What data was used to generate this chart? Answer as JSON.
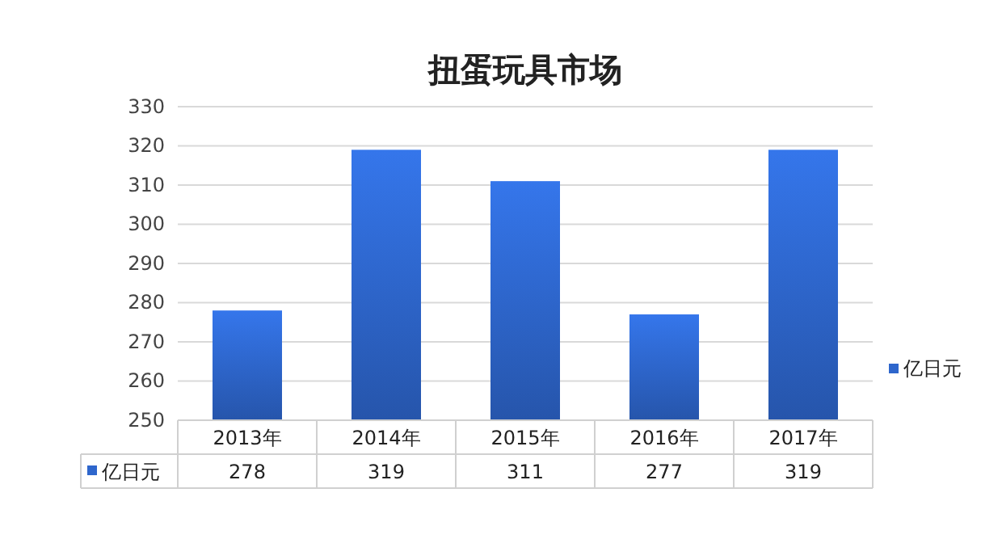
{
  "chart_data": {
    "type": "bar",
    "title": "扭蛋玩具市场",
    "categories": [
      "2013年",
      "2014年",
      "2015年",
      "2016年",
      "2017年"
    ],
    "series": [
      {
        "name": "亿日元",
        "color": "#2e66cc",
        "values": [
          278,
          319,
          311,
          277,
          319
        ]
      }
    ],
    "ylim": [
      250,
      330
    ],
    "yticks": [
      250,
      260,
      270,
      280,
      290,
      300,
      310,
      320,
      330
    ],
    "grid": "y",
    "legend": "right",
    "data_labels": true
  }
}
